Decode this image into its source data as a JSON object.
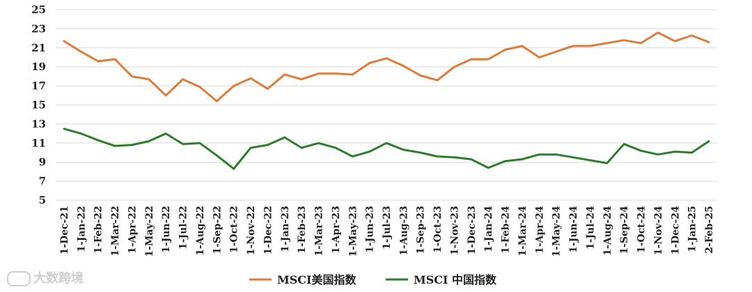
{
  "chart_data": {
    "type": "line",
    "title": "",
    "xlabel": "",
    "ylabel": "",
    "ylim": [
      5,
      25
    ],
    "yticks": [
      5,
      7,
      9,
      11,
      13,
      15,
      17,
      19,
      21,
      23,
      25
    ],
    "grid": true,
    "legend_position": "bottom",
    "categories": [
      "1-Dec-21",
      "1-Jan-22",
      "1-Feb-22",
      "1-Mar-22",
      "1-Apr-22",
      "1-May-22",
      "1-Jun-22",
      "1-Jul-22",
      "1-Aug-22",
      "1-Sep-22",
      "1-Oct-22",
      "1-Nov-22",
      "1-Dec-22",
      "1-Jan-23",
      "1-Feb-23",
      "1-Mar-23",
      "1-Apr-23",
      "1-May-23",
      "1-Jun-23",
      "1-Jul-23",
      "1-Aug-23",
      "1-Sep-23",
      "1-Oct-23",
      "1-Nov-23",
      "1-Dec-23",
      "1-Jan-24",
      "1-Feb-24",
      "1-Mar-24",
      "1-Apr-24",
      "1-May-24",
      "1-Jun-24",
      "1-Jul-24",
      "1-Aug-24",
      "1-Sep-24",
      "1-Oct-24",
      "1-Nov-24",
      "1-Dec-24",
      "1-Jan-25",
      "2-Feb-25"
    ],
    "series": [
      {
        "name": "MSCI美国指数",
        "color": "#e07b39",
        "values": [
          21.7,
          20.6,
          19.6,
          19.8,
          18.0,
          17.7,
          16.0,
          17.7,
          16.9,
          15.4,
          17.0,
          17.8,
          16.7,
          18.2,
          17.7,
          18.3,
          18.3,
          18.2,
          19.4,
          19.9,
          19.1,
          18.1,
          17.6,
          19.0,
          19.8,
          19.8,
          20.8,
          21.2,
          20.0,
          20.6,
          21.2,
          21.2,
          21.5,
          21.8,
          21.5,
          22.6,
          21.7,
          22.3,
          21.6
        ]
      },
      {
        "name": "MSCI 中国指数",
        "color": "#2e7d2e",
        "values": [
          12.5,
          12.0,
          11.3,
          10.7,
          10.8,
          11.2,
          12.0,
          10.9,
          11.0,
          9.7,
          8.3,
          10.5,
          10.8,
          11.6,
          10.5,
          11.0,
          10.5,
          9.6,
          10.1,
          11.0,
          10.3,
          10.0,
          9.6,
          9.5,
          9.3,
          8.4,
          9.1,
          9.3,
          9.8,
          9.8,
          9.5,
          9.2,
          8.9,
          10.9,
          10.2,
          9.8,
          10.1,
          10.0,
          11.2
        ]
      }
    ]
  },
  "watermark": {
    "text": "大数跨境"
  }
}
